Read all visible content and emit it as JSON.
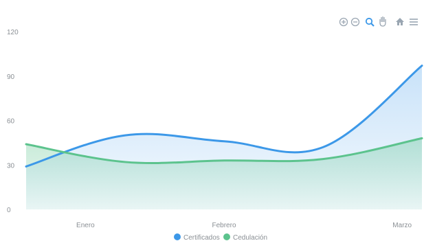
{
  "chart_data": {
    "type": "area",
    "categories": [
      "Enero",
      "Febrero",
      "Marzo"
    ],
    "x": [
      0,
      0.5,
      1,
      1.5,
      2
    ],
    "series": [
      {
        "name": "Certificados",
        "values": [
          29,
          50,
          46,
          42,
          97
        ],
        "color": "#3c98e8"
      },
      {
        "name": "Cedulación",
        "values": [
          44,
          32,
          33,
          34,
          48
        ],
        "color": "#5cc38d"
      }
    ],
    "ylim": [
      0,
      120
    ],
    "yticks": [
      "0",
      "30",
      "60",
      "90",
      "120"
    ],
    "grid": false,
    "legend": "bottom-center"
  },
  "toolbar": {
    "icons": [
      "zoom-in-icon",
      "zoom-out-icon",
      "zoom-selection-icon",
      "pan-hand-icon",
      "reset-home-icon",
      "menu-icon"
    ]
  }
}
